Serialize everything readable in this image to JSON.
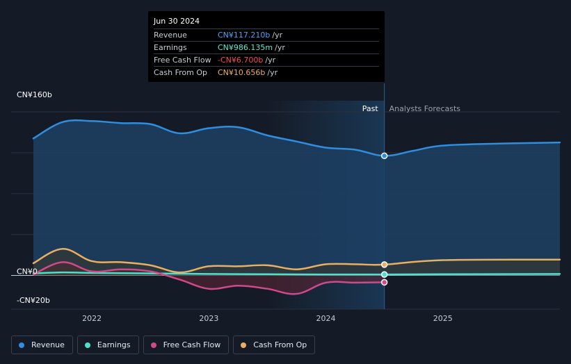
{
  "chart_data": {
    "type": "area",
    "title": "",
    "y_axis_labels": [
      "CN¥160b",
      "CN¥0",
      "-CN¥20b"
    ],
    "x_ticks": [
      "2022",
      "2023",
      "2024",
      "2025"
    ],
    "ylim": [
      -20,
      160
    ],
    "past_label": "Past",
    "forecast_label": "Analysts Forecasts",
    "tooltip": {
      "date": "Jun 30 2024",
      "rows": [
        {
          "label": "Revenue",
          "value": "CN¥117.210b",
          "unit": "/yr",
          "color": "#4aa3f0"
        },
        {
          "label": "Earnings",
          "value": "CN¥986.135m",
          "unit": "/yr",
          "color": "#5ee8d2"
        },
        {
          "label": "Free Cash Flow",
          "value": "-CN¥6.700b",
          "unit": "/yr",
          "color": "#f0505a"
        },
        {
          "label": "Cash From Op",
          "value": "CN¥10.656b",
          "unit": "/yr",
          "color": "#e9b062"
        }
      ]
    },
    "series": [
      {
        "name": "Revenue",
        "color": "#2f8ee0",
        "x": [
          2021.5,
          2021.75,
          2022.0,
          2022.25,
          2022.5,
          2022.75,
          2023.0,
          2023.25,
          2023.5,
          2023.75,
          2024.0,
          2024.25,
          2024.5,
          2024.75,
          2025.0,
          2025.5,
          2026.0
        ],
        "values": [
          134,
          150,
          151,
          149,
          148,
          139,
          144,
          145,
          137,
          131,
          125,
          123,
          117,
          122,
          127,
          129,
          130
        ]
      },
      {
        "name": "Earnings",
        "color": "#4fe0cc",
        "x": [
          2021.5,
          2021.75,
          2022.0,
          2022.5,
          2023.0,
          2023.5,
          2024.0,
          2024.5,
          2025.0,
          2026.0
        ],
        "values": [
          2,
          3,
          2.5,
          2,
          1.5,
          1.2,
          1,
          0.99,
          1.2,
          1.5
        ]
      },
      {
        "name": "Free Cash Flow",
        "color": "#d04a8a",
        "x": [
          2021.5,
          2021.75,
          2022.0,
          2022.25,
          2022.5,
          2022.75,
          2023.0,
          2023.25,
          2023.5,
          2023.75,
          2024.0,
          2024.25,
          2024.5
        ],
        "values": [
          1,
          13,
          4,
          6,
          4,
          -4,
          -13,
          -10,
          -13,
          -18,
          -7,
          -7,
          -6.7
        ]
      },
      {
        "name": "Cash From Op",
        "color": "#e9b062",
        "x": [
          2021.5,
          2021.75,
          2022.0,
          2022.25,
          2022.5,
          2022.75,
          2023.0,
          2023.25,
          2023.5,
          2023.75,
          2024.0,
          2024.25,
          2024.5,
          2025.0,
          2026.0
        ],
        "values": [
          12,
          26,
          14,
          13,
          10,
          3,
          9,
          9,
          10,
          6,
          11,
          11,
          10.656,
          15,
          15.5
        ]
      }
    ]
  },
  "legend": [
    {
      "label": "Revenue",
      "color": "#2f8ee0"
    },
    {
      "label": "Earnings",
      "color": "#4fe0cc"
    },
    {
      "label": "Free Cash Flow",
      "color": "#d04a8a"
    },
    {
      "label": "Cash From Op",
      "color": "#e9b062"
    }
  ]
}
